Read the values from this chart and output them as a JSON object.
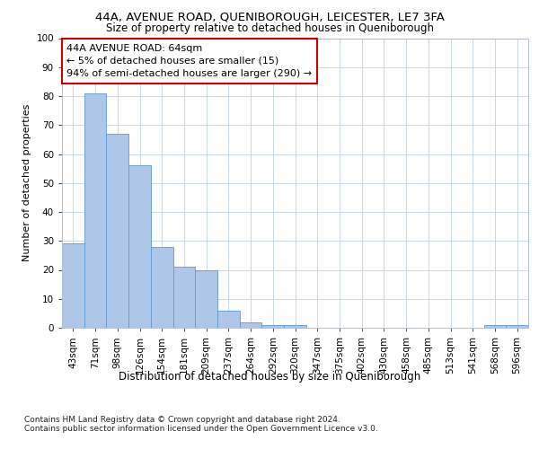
{
  "title1": "44A, AVENUE ROAD, QUENIBOROUGH, LEICESTER, LE7 3FA",
  "title2": "Size of property relative to detached houses in Queniborough",
  "xlabel": "Distribution of detached houses by size in Queniborough",
  "ylabel": "Number of detached properties",
  "categories": [
    "43sqm",
    "71sqm",
    "98sqm",
    "126sqm",
    "154sqm",
    "181sqm",
    "209sqm",
    "237sqm",
    "264sqm",
    "292sqm",
    "320sqm",
    "347sqm",
    "375sqm",
    "402sqm",
    "430sqm",
    "458sqm",
    "485sqm",
    "513sqm",
    "541sqm",
    "568sqm",
    "596sqm"
  ],
  "values": [
    29,
    81,
    67,
    56,
    28,
    21,
    20,
    6,
    2,
    1,
    1,
    0,
    0,
    0,
    0,
    0,
    0,
    0,
    0,
    1,
    1
  ],
  "bar_color": "#aec6e8",
  "bar_edge_color": "#5b9bd5",
  "annotation_text": "44A AVENUE ROAD: 64sqm\n← 5% of detached houses are smaller (15)\n94% of semi-detached houses are larger (290) →",
  "annotation_box_color": "#ffffff",
  "annotation_box_edge": "#cc0000",
  "bg_color": "#ffffff",
  "grid_color": "#c8d8e8",
  "yticks": [
    0,
    10,
    20,
    30,
    40,
    50,
    60,
    70,
    80,
    90,
    100
  ],
  "ylim": [
    0,
    100
  ],
  "footer": "Contains HM Land Registry data © Crown copyright and database right 2024.\nContains public sector information licensed under the Open Government Licence v3.0.",
  "title1_fontsize": 9.5,
  "title2_fontsize": 8.5,
  "xlabel_fontsize": 8.5,
  "ylabel_fontsize": 8,
  "tick_fontsize": 7.5,
  "annotation_fontsize": 8,
  "footer_fontsize": 6.5
}
